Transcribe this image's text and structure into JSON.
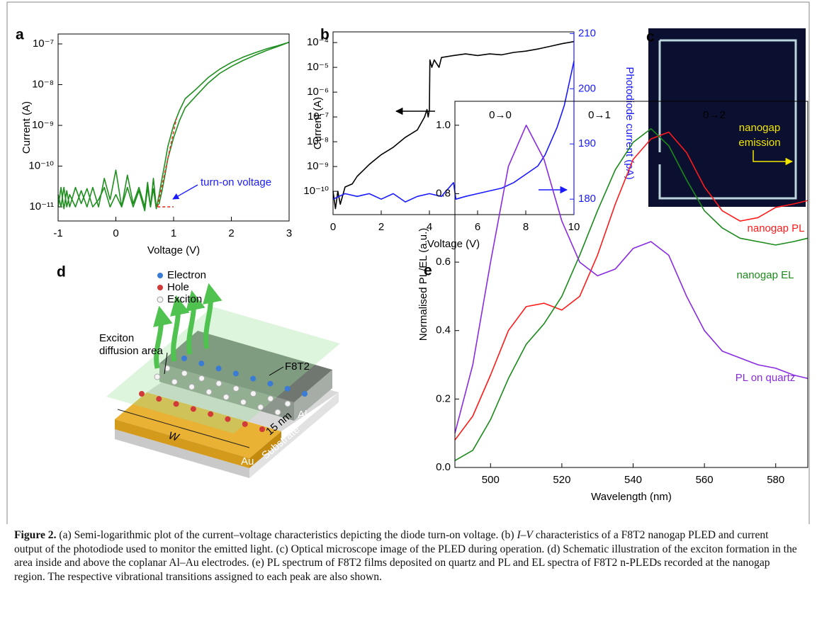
{
  "chart_data": [
    {
      "type": "line",
      "label": "a",
      "log_y": true,
      "xlabel": "Voltage (V)",
      "ylabel": "Current (A)",
      "xlim": [
        -1,
        3
      ],
      "xticks": [
        -1,
        0,
        1,
        2,
        3
      ],
      "ylim": [
        4.5e-12,
        1.75e-07
      ],
      "yticks": [
        {
          "value": 1e-11,
          "label": "10⁻¹¹"
        },
        {
          "value": 1e-10,
          "label": "10⁻¹⁰"
        },
        {
          "value": 1e-09,
          "label": "10⁻⁹"
        },
        {
          "value": 1e-08,
          "label": "10⁻⁸"
        },
        {
          "value": 1e-07,
          "label": "10⁻⁷"
        }
      ],
      "annotations": [
        "turn-on voltage"
      ],
      "annotation_color": "#1a1aff",
      "series": [
        {
          "color": "#1f8f1f",
          "x": [
            -1,
            -0.95,
            -0.9,
            -0.85,
            -0.8,
            -0.7,
            -0.6,
            -0.5,
            -0.4,
            -0.3,
            -0.2,
            -0.1,
            0,
            0.1,
            0.2,
            0.3,
            0.4,
            0.5,
            0.55,
            0.6,
            0.65,
            0.7,
            0.75,
            0.8,
            0.85,
            0.9,
            1.0,
            1.1,
            1.2,
            1.4,
            1.6,
            1.8,
            2.0,
            2.2,
            2.4,
            2.6,
            2.8,
            3.0
          ],
          "values": [
            1e-11,
            3e-11,
            9e-12,
            2.5e-11,
            1e-11,
            3e-11,
            1.2e-11,
            2.8e-11,
            1e-11,
            1.5e-11,
            3e-11,
            1e-11,
            2e-11,
            1e-11,
            3e-11,
            1e-11,
            2.5e-11,
            8e-12,
            3e-11,
            1e-11,
            2.8e-11,
            9e-12,
            2e-11,
            5e-11,
            1.2e-10,
            3e-10,
            1e-09,
            2.3e-09,
            4.5e-09,
            8e-09,
            1.5e-08,
            2.4e-08,
            3.5e-08,
            4.7e-08,
            6e-08,
            7.5e-08,
            9e-08,
            1.1e-07
          ]
        },
        {
          "color": "#1f8f1f",
          "x": [
            -1,
            -0.95,
            -0.9,
            -0.85,
            -0.8,
            -0.7,
            -0.6,
            -0.5,
            -0.4,
            -0.3,
            -0.2,
            -0.1,
            0,
            0.1,
            0.2,
            0.3,
            0.4,
            0.5,
            0.55,
            0.6,
            0.65,
            0.7,
            0.75,
            0.8,
            0.85,
            0.9,
            1.0,
            1.1,
            1.2,
            1.4,
            1.6,
            1.8,
            2.0,
            2.2,
            2.4,
            2.6,
            2.8,
            3.0
          ],
          "values": [
            2e-11,
            1e-11,
            3e-11,
            1e-11,
            2e-11,
            1e-11,
            2.5e-11,
            1e-11,
            3e-11,
            1e-11,
            5e-11,
            1.5e-11,
            8e-11,
            1e-11,
            6e-11,
            1.2e-11,
            3e-11,
            1e-11,
            4e-11,
            1e-11,
            5e-11,
            1e-11,
            1.2e-11,
            2.5e-11,
            6e-11,
            1.5e-10,
            5e-10,
            1.3e-09,
            2.7e-09,
            5.5e-09,
            1.1e-08,
            1.9e-08,
            2.8e-08,
            3.9e-08,
            5.2e-08,
            6.8e-08,
            8.6e-08,
            1.1e-07
          ]
        },
        {
          "color": "#e8332a",
          "dashed": true,
          "x": [
            0.72,
            1.05
          ],
          "values": [
            1e-11,
            1.5e-09
          ]
        },
        {
          "color": "#e8332a",
          "dashed": true,
          "x": [
            0.72,
            1.0
          ],
          "values": [
            1e-11,
            1e-11
          ]
        }
      ]
    },
    {
      "type": "line",
      "label": "b",
      "log_y": true,
      "xlabel": "Voltage (V)",
      "ylabel": "Current (A)",
      "y2label": "Photodiode current (pA)",
      "y2_color": "#1a1aff",
      "xlim": [
        0,
        10
      ],
      "xticks": [
        0,
        2,
        4,
        6,
        8,
        10
      ],
      "ylim": [
        1.15e-11,
        0.00027
      ],
      "yticks": [
        {
          "value": 1e-10,
          "label": "10⁻¹⁰"
        },
        {
          "value": 1e-09,
          "label": "10⁻⁹"
        },
        {
          "value": 1e-08,
          "label": "10⁻⁸"
        },
        {
          "value": 1e-07,
          "label": "10⁻⁷"
        },
        {
          "value": 1e-06,
          "label": "10⁻⁶"
        },
        {
          "value": 1e-05,
          "label": "10⁻⁵"
        },
        {
          "value": 0.0001,
          "label": "10⁻⁴"
        }
      ],
      "y2lim": [
        177.2,
        210.3
      ],
      "y2ticks": [
        180,
        190,
        200,
        210
      ],
      "series": [
        {
          "color": "#000000",
          "x": [
            0,
            0.1,
            0.2,
            0.3,
            0.5,
            0.8,
            1,
            1.5,
            2,
            2.5,
            3,
            3.5,
            3.8,
            3.9,
            3.95,
            4.0,
            4.02,
            4.1,
            4.2,
            4.4,
            4.5,
            5,
            5.5,
            6,
            6.5,
            7,
            7.5,
            8,
            8.5,
            9,
            9.5,
            10
          ],
          "values": [
            1e-10,
            2e-11,
            1e-10,
            3e-11,
            1.5e-10,
            2e-10,
            4e-10,
            1.2e-09,
            3e-09,
            6e-09,
            1.5e-08,
            3e-08,
            1e-07,
            2e-07,
            1e-07,
            2e-07,
            2e-05,
            1e-05,
            2e-05,
            1e-05,
            2.5e-05,
            3e-05,
            3.5e-05,
            3e-05,
            3.5e-05,
            3.2e-05,
            4e-05,
            4.5e-05,
            5.5e-05,
            7e-05,
            9e-05,
            0.00011
          ]
        },
        {
          "color": "#1a1aff",
          "axis": "y2",
          "x": [
            0,
            0.5,
            1,
            1.5,
            2,
            2.5,
            3,
            3.5,
            4,
            4.5,
            5,
            5.1,
            5.5,
            6,
            6.5,
            7,
            7.5,
            8,
            8.5,
            8.8,
            9,
            9.3,
            9.6,
            9.8,
            10
          ],
          "values": [
            180,
            181,
            180.5,
            181,
            180,
            181,
            179.5,
            180.5,
            181,
            180.5,
            183,
            180,
            180.5,
            181,
            181.5,
            182,
            183,
            184.5,
            186,
            188,
            190,
            193,
            197,
            201,
            205
          ]
        }
      ]
    },
    {
      "type": "line",
      "label": "e",
      "xlabel": "Wavelength (nm)",
      "ylabel": "Normalised PL/EL (a.u.)",
      "xlim": [
        490,
        589
      ],
      "xticks": [
        500,
        520,
        540,
        560,
        580
      ],
      "ylim": [
        0,
        1.07
      ],
      "yticks": [
        {
          "value": 0,
          "label": "0.0"
        },
        0.2,
        0.4,
        0.6,
        0.8,
        {
          "value": 1,
          "label": "1.0"
        }
      ],
      "annotations": [
        "0→0",
        "0→1",
        "0→2"
      ],
      "annotation_color": "#000000",
      "x": [
        490,
        495,
        500,
        505,
        510,
        515,
        520,
        525,
        530,
        535,
        540,
        545,
        550,
        555,
        560,
        565,
        570,
        575,
        580,
        585,
        589
      ],
      "series": [
        {
          "name": "nanogap PL",
          "color": "#ff1a1a",
          "values": [
            0.08,
            0.15,
            0.27,
            0.4,
            0.47,
            0.48,
            0.46,
            0.5,
            0.62,
            0.77,
            0.9,
            0.96,
            0.98,
            0.92,
            0.82,
            0.75,
            0.72,
            0.73,
            0.76,
            0.77,
            0.78
          ]
        },
        {
          "name": "nanogap EL",
          "color": "#1a8a1a",
          "values": [
            0.02,
            0.05,
            0.14,
            0.26,
            0.36,
            0.42,
            0.5,
            0.62,
            0.75,
            0.87,
            0.95,
            0.99,
            0.94,
            0.84,
            0.75,
            0.7,
            0.67,
            0.66,
            0.65,
            0.66,
            0.67
          ]
        },
        {
          "name": "PL on quartz",
          "color": "#8a2be2",
          "values": [
            0.1,
            0.3,
            0.6,
            0.88,
            1.0,
            0.9,
            0.72,
            0.6,
            0.56,
            0.58,
            0.64,
            0.66,
            0.62,
            0.5,
            0.4,
            0.34,
            0.32,
            0.3,
            0.29,
            0.27,
            0.26
          ]
        }
      ]
    }
  ],
  "image_panel": {
    "label": "c",
    "annotation": [
      "nanogap",
      "emission"
    ]
  },
  "schematic": {
    "label": "d",
    "legend": [
      "Electron",
      "Hole",
      "Exciton"
    ],
    "diffusion_label": [
      "Exciton",
      "diffusion area"
    ],
    "film": "F8T2",
    "width": "W",
    "electrodes": [
      "Au",
      "Al"
    ],
    "substrate": "Substrate",
    "gap": "15 nm"
  },
  "caption": {
    "label": "Figure 2.",
    "segments": [
      {
        "text": " (a) Semi-logarithmic plot of the current–voltage characteristics depicting the diode turn-on voltage. (b) "
      },
      {
        "text": "I–V",
        "italic": true
      },
      {
        "text": " characteristics of a F8T2 nanogap PLED and current output of the photodiode used to monitor the emitted light. (c) Optical microscope image of the PLED during operation. (d) Schematic illustration of the exciton formation in the area inside and above the coplanar Al–Au electrodes. (e) PL spectrum of F8T2 films deposited on quartz and PL and EL spectra of F8T2 n-PLEDs recorded at the nanogap region. The respective vibrational transitions assigned to each peak are also shown."
      }
    ]
  }
}
